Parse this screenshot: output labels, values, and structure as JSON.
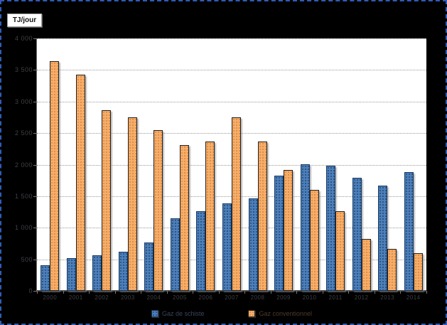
{
  "frame": {
    "background": "#000000",
    "border_color": "#2f5cb8"
  },
  "unit_box": {
    "label": "TJ/jour",
    "background": "#ffffff",
    "border_color": "#9c9c9c",
    "text_color": "#111111"
  },
  "plot": {
    "background": "#ffffff",
    "gridline_color": "#9a9a9a",
    "axis_color": "#474747",
    "axis_text_color": "#3f4046"
  },
  "legend": {
    "items": [
      {
        "label": "Gaz de schiste",
        "text_color": "#39455c"
      },
      {
        "label": "Gaz conventionnel",
        "text_color": "#4f3a28"
      }
    ]
  },
  "chart_data": {
    "type": "bar",
    "title": "",
    "ylabel_unit": "TJ/jour",
    "categories": [
      "2000",
      "2001",
      "2002",
      "2003",
      "2004",
      "2005",
      "2006",
      "2007",
      "2008",
      "2009",
      "2010",
      "2011",
      "2012",
      "2013",
      "2014"
    ],
    "series": [
      {
        "name": "Gaz de schiste",
        "fill_color": "#4c7fbc",
        "pattern_dot_color": "#24496f",
        "border_color": "#17375d",
        "values": [
          400,
          520,
          560,
          620,
          770,
          1150,
          1260,
          1390,
          1470,
          1830,
          2000,
          1980,
          1790,
          1670,
          1880
        ]
      },
      {
        "name": "Gaz conventionnel",
        "fill_color": "#f5ae6b",
        "pattern_dot_color": "#dd8336",
        "border_color": "#1f1f1f",
        "values": [
          3640,
          3430,
          2860,
          2750,
          2550,
          2310,
          2370,
          2750,
          2370,
          1910,
          1600,
          1260,
          820,
          660,
          600
        ]
      }
    ],
    "ylim": [
      0,
      4000
    ],
    "ytick_step": 500,
    "yticks_top_to_bottom": [
      "4 000",
      "3 500",
      "3 000",
      "2 500",
      "2 000",
      "1 500",
      "1 000",
      "500",
      "0"
    ],
    "grid": true,
    "legend_position": "bottom"
  }
}
